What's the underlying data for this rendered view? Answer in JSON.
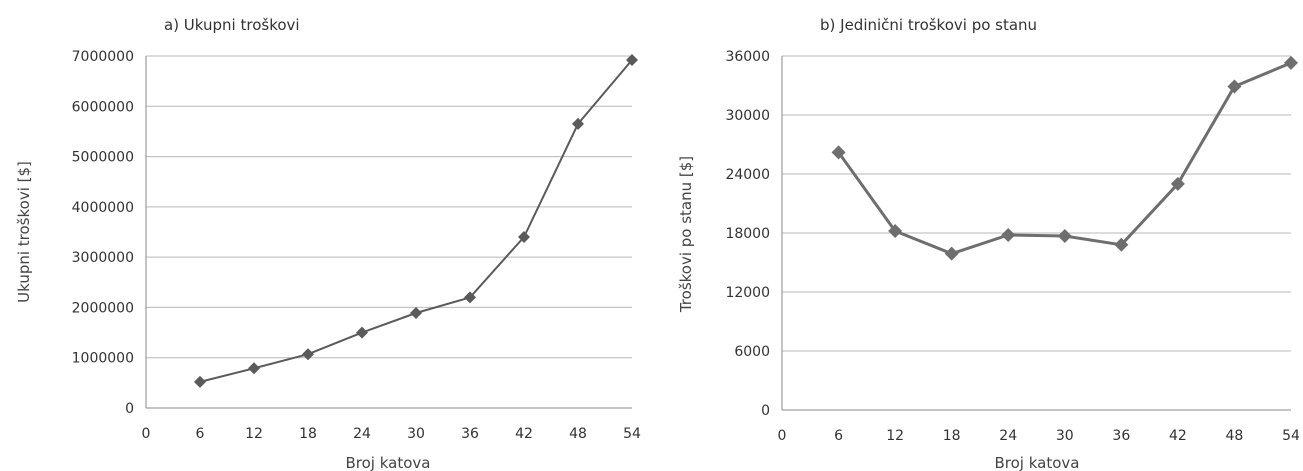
{
  "chart_data": [
    {
      "type": "line",
      "title": "a) Ukupni troškovi",
      "xlabel": "Broj katova",
      "ylabel": "Ukupni troškovi [$]",
      "x_ticks": [
        "0",
        "6",
        "12",
        "18",
        "24",
        "30",
        "36",
        "42",
        "48",
        "54"
      ],
      "y_ticks": [
        "0",
        "1000000",
        "2000000",
        "3000000",
        "4000000",
        "5000000",
        "6000000",
        "7000000"
      ],
      "xlim": [
        0,
        54
      ],
      "ylim": [
        0,
        7000000
      ],
      "grid": true,
      "marker": "diamond",
      "color": "#5a5a5a",
      "series": [
        {
          "x": [
            6,
            12,
            18,
            24,
            30,
            36,
            42,
            48,
            54
          ],
          "values": [
            520000,
            790000,
            1070000,
            1500000,
            1890000,
            2200000,
            3400000,
            5650000,
            6920000
          ]
        }
      ]
    },
    {
      "type": "line",
      "title": "b) Jedinični troškovi po stanu",
      "xlabel": "Broj katova",
      "ylabel": "Troškovi po stanu [$]",
      "x_ticks": [
        "0",
        "6",
        "12",
        "18",
        "24",
        "30",
        "36",
        "42",
        "48",
        "54"
      ],
      "y_ticks": [
        "0",
        "6000",
        "12000",
        "18000",
        "24000",
        "30000",
        "36000"
      ],
      "xlim": [
        0,
        54
      ],
      "ylim": [
        0,
        36000
      ],
      "grid": true,
      "marker": "diamond",
      "color": "#6e6e6e",
      "series": [
        {
          "x": [
            6,
            12,
            18,
            24,
            30,
            36,
            42,
            48,
            54
          ],
          "values": [
            26200,
            18200,
            15900,
            17800,
            17700,
            16800,
            23000,
            32900,
            35300
          ]
        }
      ]
    }
  ]
}
